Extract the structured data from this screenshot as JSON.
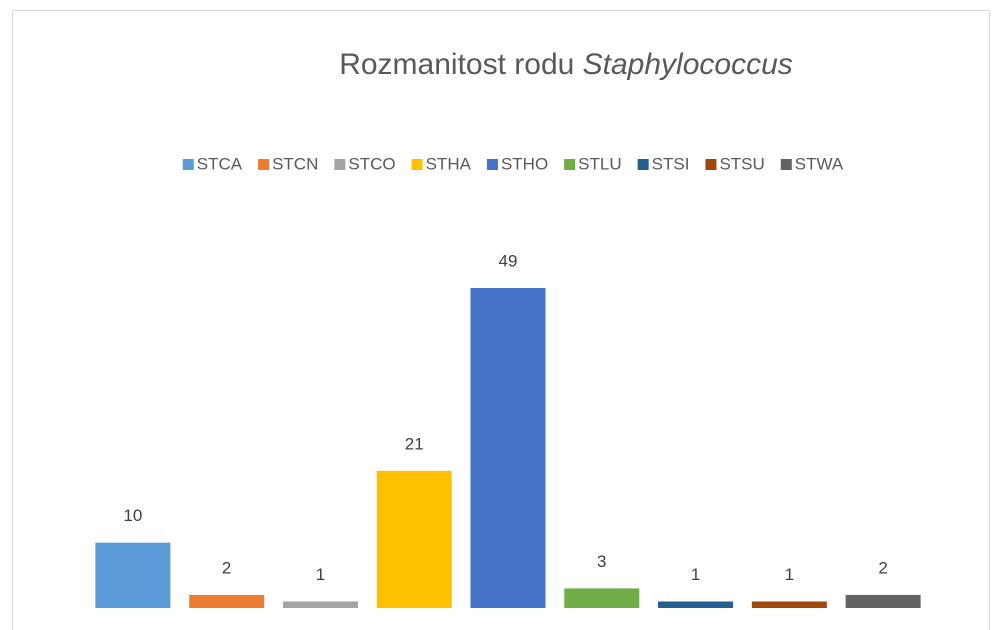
{
  "chart_data": {
    "type": "bar",
    "title": "Rozmanitost rodu",
    "title_emphasis": "Staphylococcus",
    "legend": "top",
    "series": [
      {
        "name": "STCA",
        "color": "#5b9bd5",
        "values": [
          10
        ]
      },
      {
        "name": "STCN",
        "color": "#ed7d31",
        "values": [
          2
        ]
      },
      {
        "name": "STCO",
        "color": "#a5a5a5",
        "values": [
          1
        ]
      },
      {
        "name": "STHA",
        "color": "#ffc000",
        "values": [
          21
        ]
      },
      {
        "name": "STHO",
        "color": "#4472c4",
        "values": [
          49
        ]
      },
      {
        "name": "STLU",
        "color": "#70ad47",
        "values": [
          3
        ]
      },
      {
        "name": "STSI",
        "color": "#255e91",
        "values": [
          1
        ]
      },
      {
        "name": "STSU",
        "color": "#9e480e",
        "values": [
          1
        ]
      },
      {
        "name": "STWA",
        "color": "#636363",
        "values": [
          2
        ]
      }
    ]
  }
}
